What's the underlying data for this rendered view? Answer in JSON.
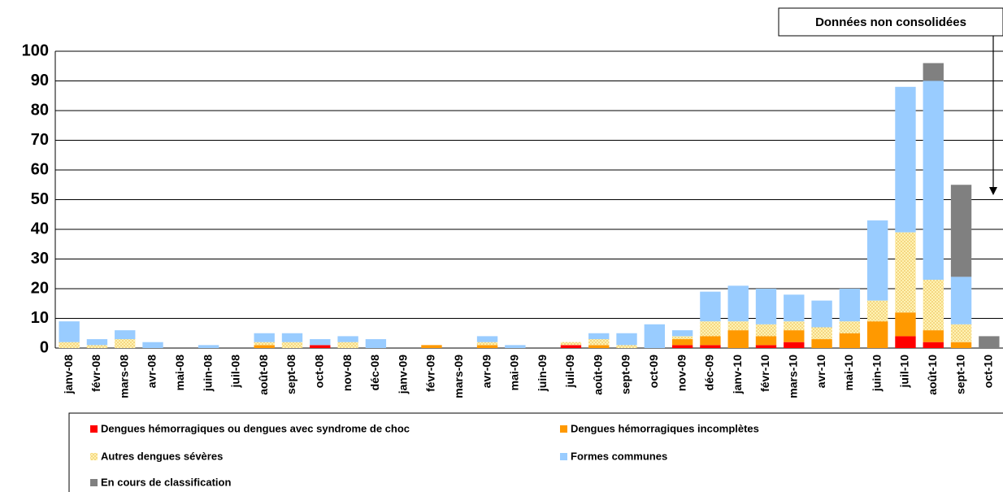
{
  "chart_data": {
    "type": "stacked_bar",
    "annotation": "Données non consolidées",
    "categories": [
      "janv-08",
      "févr-08",
      "mars-08",
      "avr-08",
      "mai-08",
      "juin-08",
      "juil-08",
      "août-08",
      "sept-08",
      "oct-08",
      "nov-08",
      "déc-08",
      "janv-09",
      "févr-09",
      "mars-09",
      "avr-09",
      "mai-09",
      "juin-09",
      "juil-09",
      "août-09",
      "sept-09",
      "oct-09",
      "nov-09",
      "déc-09",
      "janv-10",
      "févr-10",
      "mars-10",
      "avr-10",
      "mai-10",
      "juin-10",
      "juil-10",
      "août-10",
      "sept-10",
      "oct-10"
    ],
    "series": [
      {
        "name": "Dengues hémorragiques ou dengues avec syndrome de choc",
        "color": "#ff0000",
        "values": [
          0,
          0,
          0,
          0,
          0,
          0,
          0,
          0,
          0,
          1,
          0,
          0,
          0,
          0,
          0,
          0,
          0,
          0,
          1,
          0,
          0,
          0,
          1,
          1,
          0,
          1,
          2,
          0,
          0,
          0,
          4,
          2,
          0,
          0
        ]
      },
      {
        "name": "Dengues hémorragiques incomplètes",
        "color": "#ff9900",
        "values": [
          0,
          0,
          0,
          0,
          0,
          0,
          0,
          1,
          0,
          0,
          0,
          0,
          0,
          1,
          0,
          1,
          0,
          0,
          0,
          1,
          0,
          0,
          2,
          3,
          6,
          3,
          4,
          3,
          5,
          9,
          8,
          4,
          2,
          0
        ]
      },
      {
        "name": "Autres dengues sévères",
        "color": "#fff2b3",
        "values": [
          2,
          1,
          3,
          0,
          0,
          0,
          0,
          1,
          2,
          0,
          2,
          0,
          0,
          0,
          0,
          1,
          0,
          0,
          1,
          2,
          1,
          0,
          1,
          5,
          3,
          4,
          3,
          4,
          4,
          7,
          27,
          17,
          6,
          0
        ]
      },
      {
        "name": "Formes communes",
        "color": "#99ccff",
        "values": [
          7,
          2,
          3,
          2,
          0,
          1,
          0,
          3,
          3,
          2,
          2,
          3,
          0,
          0,
          0,
          2,
          1,
          0,
          0,
          2,
          4,
          8,
          2,
          10,
          12,
          12,
          9,
          9,
          11,
          27,
          49,
          67,
          16,
          0
        ]
      },
      {
        "name": "En cours de classification",
        "color": "#808080",
        "values": [
          0,
          0,
          0,
          0,
          0,
          0,
          0,
          0,
          0,
          0,
          0,
          0,
          0,
          0,
          0,
          0,
          0,
          0,
          0,
          0,
          0,
          0,
          0,
          0,
          0,
          0,
          0,
          0,
          0,
          0,
          0,
          6,
          31,
          4
        ]
      }
    ],
    "ylim": [
      0,
      100
    ],
    "yticks": [
      0,
      10,
      20,
      30,
      40,
      50,
      60,
      70,
      80,
      90,
      100
    ],
    "grid": true
  }
}
